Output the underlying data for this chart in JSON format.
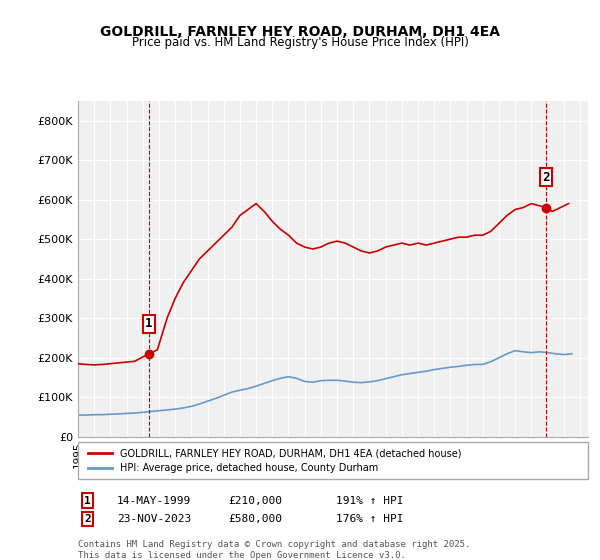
{
  "title": "GOLDRILL, FARNLEY HEY ROAD, DURHAM, DH1 4EA",
  "subtitle": "Price paid vs. HM Land Registry's House Price Index (HPI)",
  "ylabel_ticks": [
    "£0",
    "£100K",
    "£200K",
    "£300K",
    "£400K",
    "£500K",
    "£600K",
    "£700K",
    "£800K"
  ],
  "ytick_values": [
    0,
    100000,
    200000,
    300000,
    400000,
    500000,
    600000,
    700000,
    800000
  ],
  "ylim": [
    0,
    850000
  ],
  "xlim_start": 1995.0,
  "xlim_end": 2026.5,
  "property_color": "#cc0000",
  "hpi_color": "#6699cc",
  "background_color": "#f0f0f0",
  "grid_color": "#ffffff",
  "legend_label_property": "GOLDRILL, FARNLEY HEY ROAD, DURHAM, DH1 4EA (detached house)",
  "legend_label_hpi": "HPI: Average price, detached house, County Durham",
  "marker1_x": 1999.37,
  "marker1_y": 210000,
  "marker1_label": "1",
  "marker1_date": "14-MAY-1999",
  "marker1_price": "£210,000",
  "marker1_hpi": "191% ↑ HPI",
  "marker2_x": 2023.9,
  "marker2_y": 580000,
  "marker2_label": "2",
  "marker2_date": "23-NOV-2023",
  "marker2_price": "£580,000",
  "marker2_hpi": "176% ↑ HPI",
  "copyright_text": "Contains HM Land Registry data © Crown copyright and database right 2025.\nThis data is licensed under the Open Government Licence v3.0.",
  "property_x": [
    1995.0,
    1995.5,
    1996.0,
    1996.5,
    1997.0,
    1997.5,
    1998.0,
    1998.5,
    1999.37,
    1999.9,
    2000.5,
    2001.0,
    2001.5,
    2002.0,
    2002.5,
    2003.0,
    2003.5,
    2004.0,
    2004.5,
    2005.0,
    2005.5,
    2006.0,
    2006.5,
    2007.0,
    2007.5,
    2008.0,
    2008.5,
    2009.0,
    2009.5,
    2010.0,
    2010.5,
    2011.0,
    2011.5,
    2012.0,
    2012.5,
    2013.0,
    2013.5,
    2014.0,
    2014.5,
    2015.0,
    2015.5,
    2016.0,
    2016.5,
    2017.0,
    2017.5,
    2018.0,
    2018.5,
    2019.0,
    2019.5,
    2020.0,
    2020.5,
    2021.0,
    2021.5,
    2022.0,
    2022.5,
    2023.0,
    2023.9,
    2024.3,
    2024.8,
    2025.3
  ],
  "property_y": [
    185000,
    183000,
    182000,
    183000,
    185000,
    187000,
    189000,
    191000,
    210000,
    220000,
    300000,
    350000,
    390000,
    420000,
    450000,
    470000,
    490000,
    510000,
    530000,
    560000,
    575000,
    590000,
    570000,
    545000,
    525000,
    510000,
    490000,
    480000,
    475000,
    480000,
    490000,
    495000,
    490000,
    480000,
    470000,
    465000,
    470000,
    480000,
    485000,
    490000,
    485000,
    490000,
    485000,
    490000,
    495000,
    500000,
    505000,
    505000,
    510000,
    510000,
    520000,
    540000,
    560000,
    575000,
    580000,
    590000,
    580000,
    570000,
    580000,
    590000
  ],
  "hpi_x": [
    1995.0,
    1995.5,
    1996.0,
    1996.5,
    1997.0,
    1997.5,
    1998.0,
    1998.5,
    1999.0,
    1999.5,
    2000.0,
    2000.5,
    2001.0,
    2001.5,
    2002.0,
    2002.5,
    2003.0,
    2003.5,
    2004.0,
    2004.5,
    2005.0,
    2005.5,
    2006.0,
    2006.5,
    2007.0,
    2007.5,
    2008.0,
    2008.5,
    2009.0,
    2009.5,
    2010.0,
    2010.5,
    2011.0,
    2011.5,
    2012.0,
    2012.5,
    2013.0,
    2013.5,
    2014.0,
    2014.5,
    2015.0,
    2015.5,
    2016.0,
    2016.5,
    2017.0,
    2017.5,
    2018.0,
    2018.5,
    2019.0,
    2019.5,
    2020.0,
    2020.5,
    2021.0,
    2021.5,
    2022.0,
    2022.5,
    2023.0,
    2023.5,
    2024.0,
    2024.5,
    2025.0,
    2025.5
  ],
  "hpi_y": [
    55000,
    55000,
    56000,
    56000,
    57000,
    58000,
    59000,
    60000,
    62000,
    64000,
    66000,
    68000,
    70000,
    73000,
    77000,
    83000,
    90000,
    97000,
    105000,
    113000,
    118000,
    122000,
    128000,
    135000,
    142000,
    148000,
    152000,
    148000,
    140000,
    138000,
    142000,
    143000,
    143000,
    141000,
    138000,
    137000,
    139000,
    142000,
    147000,
    152000,
    157000,
    160000,
    163000,
    166000,
    170000,
    173000,
    176000,
    178000,
    181000,
    183000,
    183000,
    190000,
    200000,
    210000,
    218000,
    215000,
    213000,
    215000,
    213000,
    210000,
    208000,
    210000
  ]
}
